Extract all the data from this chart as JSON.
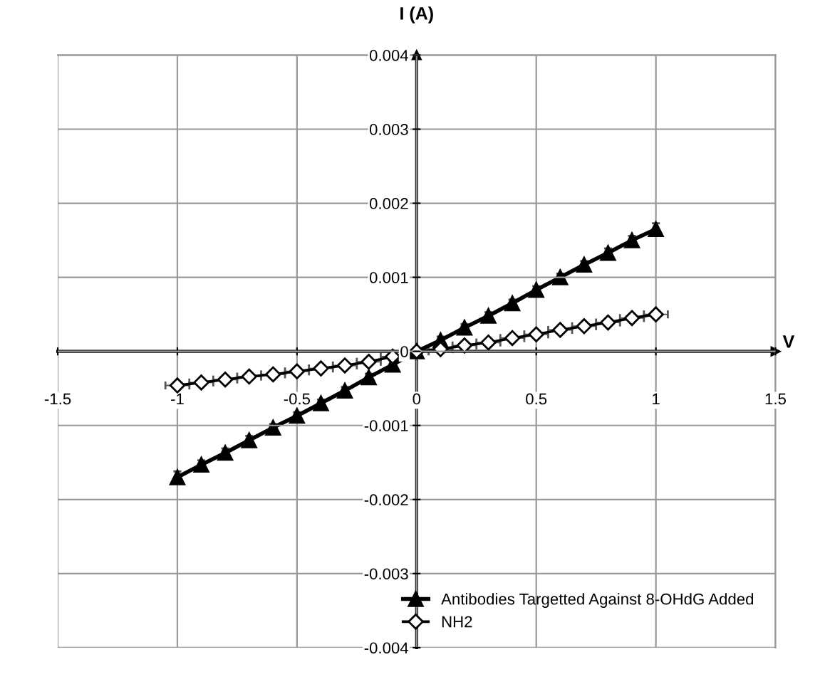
{
  "chart_data": {
    "type": "line",
    "xlabel": "V",
    "ylabel": "I (A)",
    "x": [
      -1,
      -0.9,
      -0.8,
      -0.7,
      -0.6,
      -0.5,
      -0.4,
      -0.3,
      -0.2,
      -0.1,
      0,
      0.1,
      0.2,
      0.3,
      0.4,
      0.5,
      0.6,
      0.7,
      0.8,
      0.9,
      1
    ],
    "series": [
      {
        "name": "Antibodies Targetted Against 8-OHdG Added",
        "color": "#000000",
        "marker": "triangle",
        "values": [
          -0.0017,
          -0.00153,
          -0.00137,
          -0.0012,
          -0.00103,
          -0.00087,
          -0.0007,
          -0.00053,
          -0.00035,
          -0.00018,
          0,
          0.00015,
          0.00032,
          0.00048,
          0.00065,
          0.00083,
          0.001,
          0.00117,
          0.00133,
          0.0015,
          0.00165
        ],
        "errors": [
          8e-05,
          6e-05,
          6e-05,
          6e-05,
          5e-05,
          5e-05,
          5e-05,
          5e-05,
          5e-05,
          5e-05,
          5e-05,
          5e-05,
          5e-05,
          5e-05,
          5e-05,
          5e-05,
          5e-05,
          5e-05,
          6e-05,
          6e-05,
          8e-05
        ]
      },
      {
        "name": "NH2",
        "color": "#000000",
        "marker": "diamond",
        "values": [
          -0.00046,
          -0.00042,
          -0.00038,
          -0.00034,
          -0.00031,
          -0.00027,
          -0.00023,
          -0.00019,
          -0.00014,
          -7e-05,
          0,
          3e-05,
          8e-05,
          0.00012,
          0.00018,
          0.00023,
          0.00029,
          0.00034,
          0.00039,
          0.00045,
          0.0005
        ],
        "xerrors": [
          0.05,
          0.05,
          0.05,
          0.05,
          0.05,
          0.05,
          0.05,
          0.05,
          0.05,
          0.05,
          0.05,
          0.05,
          0.05,
          0.05,
          0.05,
          0.05,
          0.05,
          0.05,
          0.05,
          0.05,
          0.05
        ]
      }
    ],
    "xlim": [
      -1.5,
      1.5
    ],
    "xticks": [
      -1.5,
      -1,
      -0.5,
      0,
      0.5,
      1,
      1.5
    ],
    "ylim": [
      -0.004,
      0.004
    ],
    "yticks": [
      -0.004,
      -0.003,
      -0.002,
      -0.001,
      0,
      0.001,
      0.002,
      0.003,
      0.004
    ],
    "grid": true,
    "legend": "bottom right",
    "line_style": "solid"
  }
}
